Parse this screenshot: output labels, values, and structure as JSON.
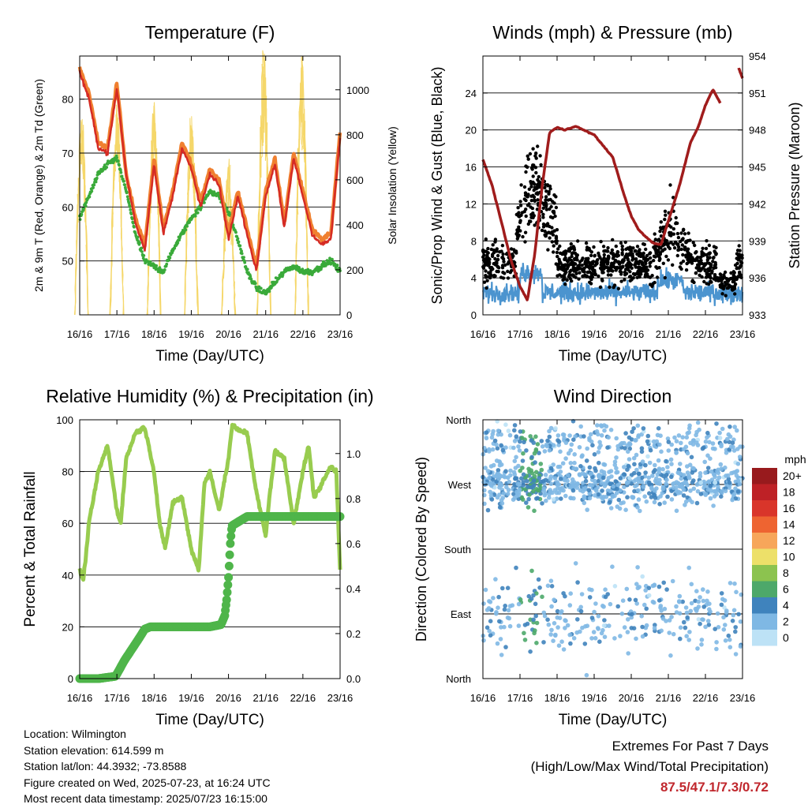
{
  "colors": {
    "temp2m": "#d52b24",
    "temp9m": "#f08030",
    "dew": "#3aaa3a",
    "solar": "#f5d76a",
    "wind": "#4b94cf",
    "gust": "#000000",
    "pressure": "#a01c1c",
    "rh": "#98cc4f",
    "precip": "#4fb54a",
    "extremes": "#c0272d"
  },
  "x_ticks": [
    "16/16",
    "17/16",
    "18/16",
    "19/16",
    "20/16",
    "21/16",
    "22/16",
    "23/16"
  ],
  "chart_data": [
    {
      "type": "line",
      "title": "Temperature (F)",
      "xlabel": "Time (Day/UTC)",
      "ylabel": "2m & 9m T (Red, Orange) & 2m Td (Green)",
      "y2label": "Solar Insolation (Yellow)",
      "ylim": [
        40,
        88
      ],
      "yticks": [
        50,
        60,
        70,
        80
      ],
      "y2lim": [
        0,
        1150
      ],
      "y2ticks": [
        0,
        200,
        400,
        600,
        800,
        1000
      ],
      "x": [
        0,
        0.25,
        0.5,
        0.75,
        1.0,
        1.25,
        1.5,
        1.75,
        2.0,
        2.25,
        2.5,
        2.75,
        3.0,
        3.25,
        3.5,
        3.75,
        4.0,
        4.25,
        4.5,
        4.75,
        5.0,
        5.25,
        5.5,
        5.75,
        6.0,
        6.25,
        6.5,
        6.75,
        7.0
      ],
      "series": [
        {
          "name": "2m T",
          "color": "temp2m",
          "values": [
            85,
            80,
            71,
            70,
            82,
            66,
            57,
            52,
            68,
            55,
            62,
            71,
            67,
            60,
            66,
            64,
            54,
            62,
            55,
            48,
            62,
            68,
            56,
            69,
            62,
            55,
            53,
            54,
            73
          ]
        },
        {
          "name": "9m T",
          "color": "temp9m",
          "values": [
            86,
            81,
            72,
            71,
            83,
            66,
            58,
            53,
            69,
            56,
            63,
            72,
            68,
            61,
            67,
            65,
            55,
            63,
            56,
            49,
            63,
            69,
            57,
            70,
            63,
            56,
            54,
            55,
            74
          ]
        },
        {
          "name": "2m Td",
          "color": "dew",
          "values": [
            58,
            62,
            66,
            68,
            69,
            63,
            55,
            50,
            49,
            48,
            52,
            55,
            58,
            60,
            63,
            62,
            59,
            54,
            48,
            45,
            44,
            46,
            48,
            49,
            48,
            48,
            49,
            50,
            48
          ]
        }
      ],
      "solar_peaks": [
        {
          "day": 0.05,
          "value": 820
        },
        {
          "day": 1.0,
          "value": 850
        },
        {
          "day": 2.0,
          "value": 980
        },
        {
          "day": 3.0,
          "value": 870
        },
        {
          "day": 4.0,
          "value": 620
        },
        {
          "day": 4.95,
          "value": 1120
        },
        {
          "day": 5.97,
          "value": 1110
        }
      ]
    },
    {
      "type": "scatter",
      "title": "Winds (mph) & Pressure (mb)",
      "xlabel": "Time (Day/UTC)",
      "ylabel": "Sonic/Prop Wind & Gust (Blue, Black)",
      "y2label": "Station Pressure (Maroon)",
      "ylim": [
        0,
        28
      ],
      "yticks": [
        0,
        4,
        8,
        12,
        16,
        20,
        24
      ],
      "y2lim": [
        933,
        954
      ],
      "y2ticks": [
        933,
        936,
        939,
        942,
        945,
        948,
        951,
        954
      ],
      "pressure": {
        "x": [
          0,
          0.25,
          0.5,
          0.75,
          1.0,
          1.2,
          1.4,
          1.6,
          1.8,
          2.0,
          2.2,
          2.5,
          3.0,
          3.5,
          3.8,
          4.0,
          4.2,
          4.4,
          4.6,
          4.8,
          5.0,
          5.3,
          5.6,
          5.8,
          6.0,
          6.2,
          6.4
        ],
        "values": [
          945.6,
          943.5,
          940.5,
          937.5,
          935.3,
          934.2,
          938.0,
          943.5,
          947.8,
          948.2,
          948.0,
          948.3,
          947.6,
          945.8,
          942.8,
          941.0,
          939.9,
          939.3,
          938.8,
          938.7,
          940.6,
          943.5,
          947.0,
          948.2,
          950.0,
          951.3,
          950.2
        ]
      },
      "pressure_tail": {
        "x": [
          6.9,
          7.0
        ],
        "values": [
          953.0,
          952.2
        ]
      }
    },
    {
      "type": "line",
      "title": "Relative Humidity (%) & Precipitation (in)",
      "xlabel": "Time (Day/UTC)",
      "ylabel": "Percent & Total Rainfall",
      "ylim": [
        0,
        100
      ],
      "yticks": [
        0,
        20,
        40,
        60,
        80,
        100
      ],
      "y2lim": [
        0,
        1.15
      ],
      "y2ticks": [
        "0.0",
        "0.2",
        "0.4",
        "0.6",
        "0.8",
        "1.0"
      ],
      "rh": {
        "x": [
          0,
          0.1,
          0.25,
          0.5,
          0.75,
          1.0,
          1.1,
          1.25,
          1.5,
          1.75,
          2.0,
          2.15,
          2.3,
          2.5,
          2.75,
          3.0,
          3.2,
          3.35,
          3.5,
          3.75,
          4.0,
          4.1,
          4.25,
          4.5,
          4.75,
          5.0,
          5.1,
          5.25,
          5.5,
          5.75,
          6.0,
          6.15,
          6.3,
          6.5,
          6.75,
          6.9,
          7.0
        ],
        "values": [
          42,
          38,
          60,
          80,
          90,
          65,
          60,
          85,
          95,
          97,
          80,
          60,
          50,
          68,
          70,
          50,
          42,
          75,
          80,
          65,
          85,
          98,
          96,
          95,
          72,
          55,
          70,
          88,
          85,
          60,
          80,
          90,
          70,
          75,
          82,
          80,
          42
        ]
      },
      "precip": {
        "x": [
          0,
          0.5,
          0.95,
          1.0,
          1.2,
          1.4,
          1.6,
          1.75,
          1.9,
          2.2,
          3.0,
          3.5,
          3.8,
          3.9,
          3.95,
          4.0,
          4.05,
          4.08,
          4.1,
          4.3,
          4.5,
          5.0,
          6.0,
          7.0
        ],
        "values": [
          0.0,
          0.0,
          0.01,
          0.02,
          0.08,
          0.13,
          0.18,
          0.22,
          0.23,
          0.23,
          0.23,
          0.23,
          0.24,
          0.28,
          0.35,
          0.45,
          0.6,
          0.66,
          0.68,
          0.7,
          0.72,
          0.72,
          0.72,
          0.72
        ]
      }
    },
    {
      "type": "scatter",
      "title": "Wind Direction",
      "xlabel": "Time (Day/UTC)",
      "ylabel": "Direction (Colored By Speed)",
      "ylim": [
        0,
        360
      ],
      "ylabels": [
        "North",
        "East",
        "South",
        "West",
        "North"
      ],
      "legend_title": "mph",
      "legend_labels": [
        "20+",
        "18",
        "16",
        "14",
        "12",
        "10",
        "8",
        "6",
        "4",
        "2",
        "0"
      ],
      "legend_colors": [
        "#981a1d",
        "#be2126",
        "#d9352a",
        "#ee6431",
        "#f7a65a",
        "#ede069",
        "#8cc34f",
        "#4da86a",
        "#3f83bd",
        "#7fb8e4",
        "#bde2f6"
      ],
      "legend_placement": "right"
    }
  ],
  "info": {
    "location": "Location: Wilmington",
    "elevation": "Station elevation: 614.599 m",
    "latlon": "Station lat/lon: 44.3932; -73.8588",
    "created": "Figure created on Wed, 2025-07-23, at 16:24 UTC",
    "recent": "Most recent data timestamp: 2025/07/23 16:15:00"
  },
  "extremes": {
    "title": "Extremes For Past 7 Days",
    "subtitle": "(High/Low/Max Wind/Total Precipitation)",
    "values": "87.5/47.1/7.3/0.72"
  }
}
